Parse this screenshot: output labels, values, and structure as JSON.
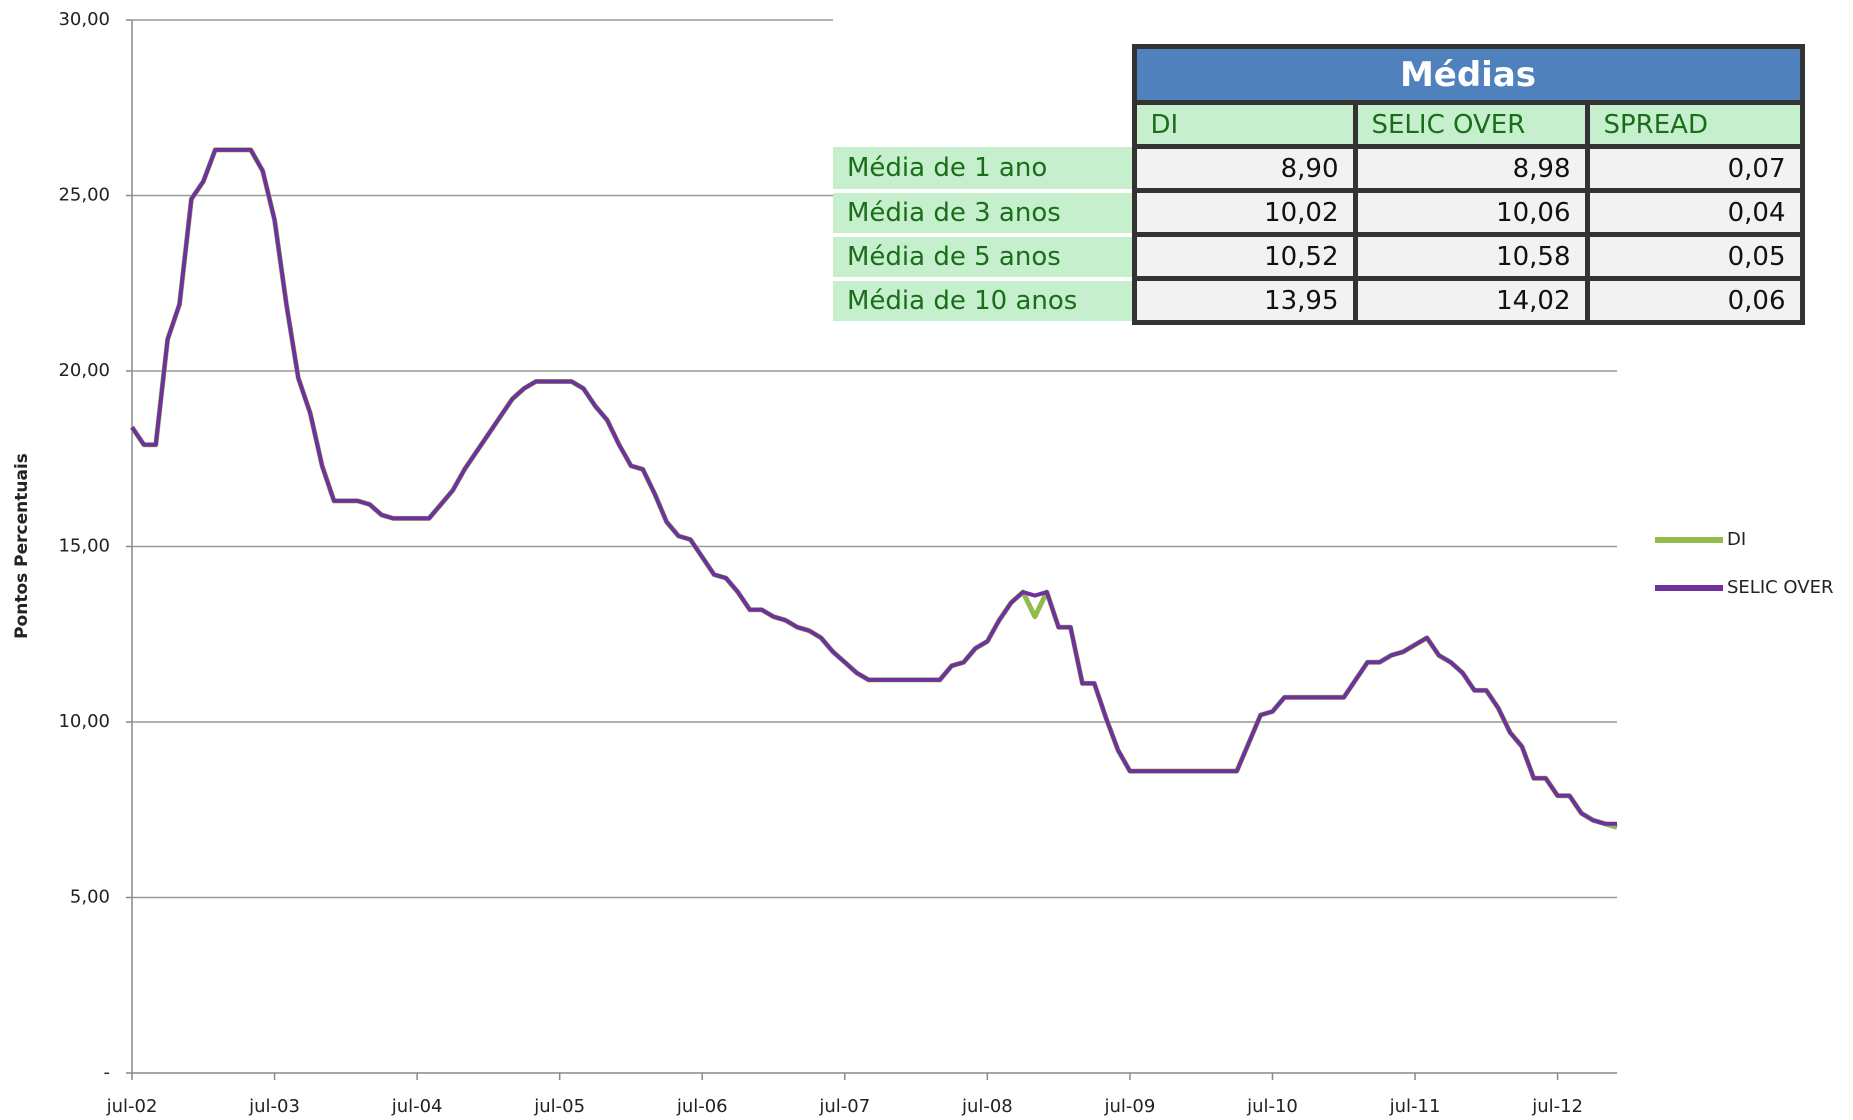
{
  "chart_data": {
    "type": "line",
    "y_label": "Pontos Percentuais",
    "categories": [
      "jul-02",
      null,
      null,
      null,
      null,
      null,
      null,
      null,
      null,
      null,
      null,
      null,
      "jul-03",
      null,
      null,
      null,
      null,
      null,
      null,
      null,
      null,
      null,
      null,
      null,
      "jul-04",
      null,
      null,
      null,
      null,
      null,
      null,
      null,
      null,
      null,
      null,
      null,
      "jul-05",
      null,
      null,
      null,
      null,
      null,
      null,
      null,
      null,
      null,
      null,
      null,
      "jul-06",
      null,
      null,
      null,
      null,
      null,
      null,
      null,
      null,
      null,
      null,
      null,
      "jul-07",
      null,
      null,
      null,
      null,
      null,
      null,
      null,
      null,
      null,
      null,
      null,
      "jul-08",
      null,
      null,
      null,
      null,
      null,
      null,
      null,
      null,
      null,
      null,
      null,
      "jul-09",
      null,
      null,
      null,
      null,
      null,
      null,
      null,
      null,
      null,
      null,
      null,
      "jul-10",
      null,
      null,
      null,
      null,
      null,
      null,
      null,
      null,
      null,
      null,
      null,
      "jul-11",
      null,
      null,
      null,
      null,
      null,
      null,
      null,
      null,
      null,
      null,
      null,
      "jul-12",
      null,
      null,
      null,
      null,
      null
    ],
    "series": [
      {
        "name": "DI",
        "color": "#8fbc4a",
        "values": [
          18.4,
          17.9,
          17.9,
          20.9,
          21.9,
          24.9,
          25.4,
          26.3,
          26.3,
          26.3,
          26.3,
          25.7,
          24.3,
          21.9,
          19.8,
          18.8,
          17.3,
          16.3,
          16.3,
          16.3,
          16.2,
          15.9,
          15.8,
          15.8,
          15.8,
          15.8,
          16.2,
          16.6,
          17.2,
          17.7,
          18.2,
          18.7,
          19.2,
          19.5,
          19.7,
          19.7,
          19.7,
          19.7,
          19.5,
          19.0,
          18.6,
          17.9,
          17.3,
          17.2,
          16.5,
          15.7,
          15.3,
          15.2,
          14.7,
          14.2,
          14.1,
          13.7,
          13.2,
          13.2,
          13.0,
          12.9,
          12.7,
          12.6,
          12.4,
          12.0,
          11.7,
          11.4,
          11.2,
          11.2,
          11.2,
          11.2,
          11.2,
          11.2,
          11.2,
          11.6,
          11.7,
          12.1,
          12.3,
          12.9,
          13.4,
          13.7,
          13.0,
          13.7,
          12.7,
          12.7,
          11.1,
          11.1,
          10.1,
          9.2,
          8.6,
          8.6,
          8.6,
          8.6,
          8.6,
          8.6,
          8.6,
          8.6,
          8.6,
          8.6,
          9.4,
          10.2,
          10.3,
          10.7,
          10.7,
          10.7,
          10.7,
          10.7,
          10.7,
          11.2,
          11.7,
          11.7,
          11.9,
          12.0,
          12.2,
          12.4,
          11.9,
          11.7,
          11.4,
          10.9,
          10.9,
          10.4,
          9.7,
          9.3,
          8.4,
          8.4,
          7.9,
          7.9,
          7.4,
          7.2,
          7.1,
          7.0
        ]
      },
      {
        "name": "SELIC OVER",
        "color": "#7030a0",
        "values": [
          18.4,
          17.9,
          17.9,
          20.9,
          21.9,
          24.9,
          25.4,
          26.3,
          26.3,
          26.3,
          26.3,
          25.7,
          24.3,
          21.9,
          19.8,
          18.8,
          17.3,
          16.3,
          16.3,
          16.3,
          16.2,
          15.9,
          15.8,
          15.8,
          15.8,
          15.8,
          16.2,
          16.6,
          17.2,
          17.7,
          18.2,
          18.7,
          19.2,
          19.5,
          19.7,
          19.7,
          19.7,
          19.7,
          19.5,
          19.0,
          18.6,
          17.9,
          17.3,
          17.2,
          16.5,
          15.7,
          15.3,
          15.2,
          14.7,
          14.2,
          14.1,
          13.7,
          13.2,
          13.2,
          13.0,
          12.9,
          12.7,
          12.6,
          12.4,
          12.0,
          11.7,
          11.4,
          11.2,
          11.2,
          11.2,
          11.2,
          11.2,
          11.2,
          11.2,
          11.6,
          11.7,
          12.1,
          12.3,
          12.9,
          13.4,
          13.7,
          13.6,
          13.7,
          12.7,
          12.7,
          11.1,
          11.1,
          10.1,
          9.2,
          8.6,
          8.6,
          8.6,
          8.6,
          8.6,
          8.6,
          8.6,
          8.6,
          8.6,
          8.6,
          9.4,
          10.2,
          10.3,
          10.7,
          10.7,
          10.7,
          10.7,
          10.7,
          10.7,
          11.2,
          11.7,
          11.7,
          11.9,
          12.0,
          12.2,
          12.4,
          11.9,
          11.7,
          11.4,
          10.9,
          10.9,
          10.4,
          9.7,
          9.3,
          8.4,
          8.4,
          7.9,
          7.9,
          7.4,
          7.2,
          7.1,
          7.1
        ]
      }
    ],
    "ylim": [
      0,
      30
    ],
    "yticks": [
      {
        "value": 0,
        "label": "-"
      },
      {
        "value": 5,
        "label": "5,00"
      },
      {
        "value": 10,
        "label": "10,00"
      },
      {
        "value": 15,
        "label": "15,00"
      },
      {
        "value": 20,
        "label": "20,00"
      },
      {
        "value": 25,
        "label": "25,00"
      },
      {
        "value": 30,
        "label": "30,00"
      }
    ],
    "grid": true,
    "legend": "right"
  },
  "table": {
    "title": "Médias",
    "columns": [
      "DI",
      "SELIC OVER",
      "SPREAD"
    ],
    "rows": [
      {
        "label": "Média de 1 ano",
        "values": [
          "8,90",
          "8,98",
          "0,07"
        ]
      },
      {
        "label": "Média de 3 anos",
        "values": [
          "10,02",
          "10,06",
          "0,04"
        ]
      },
      {
        "label": "Média de 5 anos",
        "values": [
          "10,52",
          "10,58",
          "0,05"
        ]
      },
      {
        "label": "Média de 10 anos",
        "values": [
          "13,95",
          "14,02",
          "0,06"
        ]
      }
    ]
  }
}
